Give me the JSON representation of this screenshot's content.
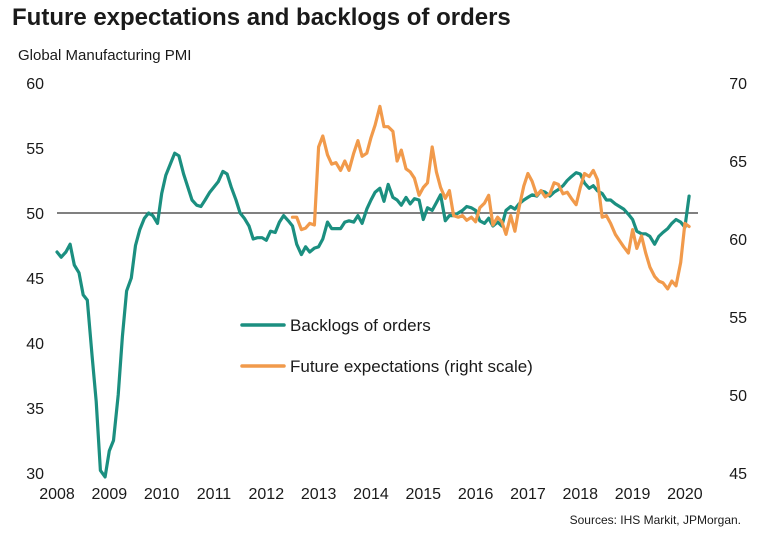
{
  "title": "Future expectations and backlogs of orders",
  "subtitle": "Global Manufacturing  PMI",
  "source": "Sources: IHS Markit, JPMorgan.",
  "chart_data": {
    "type": "line",
    "x_tick_labels": [
      "2008",
      "2009",
      "2010",
      "2011",
      "2012",
      "2013",
      "2014",
      "2015",
      "2016",
      "2017",
      "2018",
      "2019",
      "2020"
    ],
    "xlim": [
      2008,
      2020.25
    ],
    "left_axis": {
      "ylim": [
        30,
        60
      ],
      "ticks": [
        30,
        35,
        40,
        45,
        50,
        55,
        60
      ]
    },
    "right_axis": {
      "ylim": [
        45,
        70
      ],
      "ticks": [
        45,
        50,
        55,
        60,
        65,
        70
      ]
    },
    "reference_line": 50,
    "colors": {
      "backlogs": "#1b8f80",
      "expectations": "#f19a4b"
    },
    "series": [
      {
        "name": "Backlogs of orders",
        "axis": "left",
        "points": [
          [
            2008.0,
            47.0
          ],
          [
            2008.08,
            46.6
          ],
          [
            2008.17,
            47.0
          ],
          [
            2008.25,
            47.6
          ],
          [
            2008.33,
            46.0
          ],
          [
            2008.42,
            45.4
          ],
          [
            2008.5,
            43.7
          ],
          [
            2008.58,
            43.3
          ],
          [
            2008.67,
            39.0
          ],
          [
            2008.75,
            35.5
          ],
          [
            2008.83,
            30.2
          ],
          [
            2008.92,
            29.7
          ],
          [
            2009.0,
            31.7
          ],
          [
            2009.08,
            32.5
          ],
          [
            2009.17,
            36.0
          ],
          [
            2009.25,
            40.5
          ],
          [
            2009.33,
            44.0
          ],
          [
            2009.42,
            45.0
          ],
          [
            2009.5,
            47.5
          ],
          [
            2009.58,
            48.7
          ],
          [
            2009.67,
            49.6
          ],
          [
            2009.75,
            50.0
          ],
          [
            2009.83,
            49.8
          ],
          [
            2009.92,
            49.2
          ],
          [
            2010.0,
            51.5
          ],
          [
            2010.08,
            52.9
          ],
          [
            2010.17,
            53.8
          ],
          [
            2010.25,
            54.6
          ],
          [
            2010.33,
            54.4
          ],
          [
            2010.42,
            53.0
          ],
          [
            2010.5,
            52.0
          ],
          [
            2010.58,
            51.0
          ],
          [
            2010.67,
            50.6
          ],
          [
            2010.75,
            50.5
          ],
          [
            2010.83,
            51.0
          ],
          [
            2010.92,
            51.6
          ],
          [
            2011.0,
            52.0
          ],
          [
            2011.08,
            52.4
          ],
          [
            2011.17,
            53.2
          ],
          [
            2011.25,
            53.0
          ],
          [
            2011.33,
            52.0
          ],
          [
            2011.42,
            51.0
          ],
          [
            2011.5,
            50.0
          ],
          [
            2011.58,
            49.6
          ],
          [
            2011.67,
            49.0
          ],
          [
            2011.75,
            48.0
          ],
          [
            2011.83,
            48.1
          ],
          [
            2011.92,
            48.1
          ],
          [
            2012.0,
            47.9
          ],
          [
            2012.08,
            48.6
          ],
          [
            2012.17,
            48.5
          ],
          [
            2012.25,
            49.3
          ],
          [
            2012.33,
            49.8
          ],
          [
            2012.42,
            49.4
          ],
          [
            2012.5,
            49.0
          ],
          [
            2012.58,
            47.6
          ],
          [
            2012.67,
            46.8
          ],
          [
            2012.75,
            47.4
          ],
          [
            2012.83,
            47.0
          ],
          [
            2012.92,
            47.3
          ],
          [
            2013.0,
            47.4
          ],
          [
            2013.08,
            48.0
          ],
          [
            2013.17,
            49.3
          ],
          [
            2013.25,
            48.8
          ],
          [
            2013.33,
            48.8
          ],
          [
            2013.42,
            48.8
          ],
          [
            2013.5,
            49.3
          ],
          [
            2013.58,
            49.4
          ],
          [
            2013.67,
            49.3
          ],
          [
            2013.75,
            49.8
          ],
          [
            2013.83,
            49.2
          ],
          [
            2013.92,
            50.3
          ],
          [
            2014.0,
            51.0
          ],
          [
            2014.08,
            51.6
          ],
          [
            2014.17,
            51.9
          ],
          [
            2014.25,
            50.9
          ],
          [
            2014.33,
            52.2
          ],
          [
            2014.42,
            51.2
          ],
          [
            2014.5,
            51.0
          ],
          [
            2014.58,
            50.6
          ],
          [
            2014.67,
            51.2
          ],
          [
            2014.75,
            50.7
          ],
          [
            2014.83,
            51.1
          ],
          [
            2014.92,
            51.0
          ],
          [
            2015.0,
            49.5
          ],
          [
            2015.08,
            50.4
          ],
          [
            2015.17,
            50.2
          ],
          [
            2015.25,
            50.8
          ],
          [
            2015.33,
            51.4
          ],
          [
            2015.42,
            49.4
          ],
          [
            2015.5,
            49.8
          ],
          [
            2015.58,
            49.8
          ],
          [
            2015.67,
            50.0
          ],
          [
            2015.75,
            50.2
          ],
          [
            2015.83,
            50.5
          ],
          [
            2015.92,
            50.4
          ],
          [
            2016.0,
            50.2
          ],
          [
            2016.08,
            49.4
          ],
          [
            2016.17,
            49.2
          ],
          [
            2016.25,
            49.6
          ],
          [
            2016.33,
            49.0
          ],
          [
            2016.42,
            49.3
          ],
          [
            2016.5,
            49.0
          ],
          [
            2016.58,
            50.2
          ],
          [
            2016.67,
            50.5
          ],
          [
            2016.75,
            50.3
          ],
          [
            2016.83,
            50.7
          ],
          [
            2016.92,
            51.0
          ],
          [
            2017.0,
            51.2
          ],
          [
            2017.08,
            51.4
          ],
          [
            2017.17,
            51.3
          ],
          [
            2017.25,
            51.7
          ],
          [
            2017.33,
            51.6
          ],
          [
            2017.42,
            51.3
          ],
          [
            2017.5,
            51.6
          ],
          [
            2017.58,
            51.8
          ],
          [
            2017.67,
            52.1
          ],
          [
            2017.75,
            52.5
          ],
          [
            2017.83,
            52.8
          ],
          [
            2017.92,
            53.1
          ],
          [
            2018.0,
            53.0
          ],
          [
            2018.08,
            52.3
          ],
          [
            2018.17,
            51.9
          ],
          [
            2018.25,
            52.1
          ],
          [
            2018.33,
            51.7
          ],
          [
            2018.42,
            51.5
          ],
          [
            2018.5,
            51.0
          ],
          [
            2018.58,
            51.0
          ],
          [
            2018.67,
            50.7
          ],
          [
            2018.75,
            50.5
          ],
          [
            2018.83,
            50.3
          ],
          [
            2018.92,
            49.9
          ],
          [
            2019.0,
            49.5
          ],
          [
            2019.08,
            48.6
          ],
          [
            2019.17,
            48.4
          ],
          [
            2019.25,
            48.4
          ],
          [
            2019.33,
            48.2
          ],
          [
            2019.42,
            47.6
          ],
          [
            2019.5,
            48.2
          ],
          [
            2019.58,
            48.5
          ],
          [
            2019.67,
            48.8
          ],
          [
            2019.75,
            49.2
          ],
          [
            2019.83,
            49.5
          ],
          [
            2019.92,
            49.3
          ],
          [
            2020.0,
            48.9
          ],
          [
            2020.08,
            51.3
          ]
        ]
      },
      {
        "name": "Future expectations (right scale)",
        "axis": "right",
        "points": [
          [
            2012.5,
            61.4
          ],
          [
            2012.58,
            61.4
          ],
          [
            2012.67,
            60.6
          ],
          [
            2012.75,
            60.7
          ],
          [
            2012.83,
            61.0
          ],
          [
            2012.92,
            60.9
          ],
          [
            2013.0,
            65.9
          ],
          [
            2013.08,
            66.6
          ],
          [
            2013.17,
            65.4
          ],
          [
            2013.25,
            64.8
          ],
          [
            2013.33,
            64.9
          ],
          [
            2013.42,
            64.4
          ],
          [
            2013.5,
            65.0
          ],
          [
            2013.58,
            64.4
          ],
          [
            2013.67,
            65.5
          ],
          [
            2013.75,
            66.3
          ],
          [
            2013.83,
            65.3
          ],
          [
            2013.92,
            65.5
          ],
          [
            2014.0,
            66.5
          ],
          [
            2014.08,
            67.3
          ],
          [
            2014.17,
            68.5
          ],
          [
            2014.25,
            67.2
          ],
          [
            2014.33,
            67.2
          ],
          [
            2014.42,
            66.9
          ],
          [
            2014.5,
            65.0
          ],
          [
            2014.58,
            65.7
          ],
          [
            2014.67,
            64.5
          ],
          [
            2014.75,
            64.3
          ],
          [
            2014.83,
            63.9
          ],
          [
            2014.92,
            62.8
          ],
          [
            2015.0,
            63.3
          ],
          [
            2015.08,
            63.6
          ],
          [
            2015.17,
            65.9
          ],
          [
            2015.25,
            64.3
          ],
          [
            2015.33,
            63.3
          ],
          [
            2015.42,
            62.6
          ],
          [
            2015.5,
            63.1
          ],
          [
            2015.58,
            61.5
          ],
          [
            2015.67,
            61.4
          ],
          [
            2015.75,
            61.5
          ],
          [
            2015.83,
            61.2
          ],
          [
            2015.92,
            61.4
          ],
          [
            2016.0,
            61.1
          ],
          [
            2016.08,
            62.0
          ],
          [
            2016.17,
            62.3
          ],
          [
            2016.25,
            62.8
          ],
          [
            2016.33,
            60.9
          ],
          [
            2016.42,
            61.4
          ],
          [
            2016.5,
            61.1
          ],
          [
            2016.58,
            60.3
          ],
          [
            2016.67,
            61.5
          ],
          [
            2016.75,
            60.5
          ],
          [
            2016.83,
            62.0
          ],
          [
            2016.92,
            63.4
          ],
          [
            2017.0,
            64.2
          ],
          [
            2017.08,
            63.7
          ],
          [
            2017.17,
            62.8
          ],
          [
            2017.25,
            63.1
          ],
          [
            2017.33,
            62.7
          ],
          [
            2017.42,
            62.9
          ],
          [
            2017.5,
            63.6
          ],
          [
            2017.58,
            63.5
          ],
          [
            2017.67,
            62.9
          ],
          [
            2017.75,
            63.0
          ],
          [
            2017.83,
            62.6
          ],
          [
            2017.92,
            62.2
          ],
          [
            2018.0,
            63.3
          ],
          [
            2018.08,
            64.2
          ],
          [
            2018.17,
            64.0
          ],
          [
            2018.25,
            64.4
          ],
          [
            2018.33,
            63.8
          ],
          [
            2018.42,
            61.4
          ],
          [
            2018.5,
            61.5
          ],
          [
            2018.58,
            61.0
          ],
          [
            2018.67,
            60.3
          ],
          [
            2018.75,
            59.9
          ],
          [
            2018.83,
            59.5
          ],
          [
            2018.92,
            59.1
          ],
          [
            2019.0,
            60.6
          ],
          [
            2019.08,
            59.4
          ],
          [
            2019.17,
            60.2
          ],
          [
            2019.25,
            59.1
          ],
          [
            2019.33,
            58.2
          ],
          [
            2019.42,
            57.6
          ],
          [
            2019.5,
            57.3
          ],
          [
            2019.58,
            57.2
          ],
          [
            2019.67,
            56.8
          ],
          [
            2019.75,
            57.3
          ],
          [
            2019.83,
            57.0
          ],
          [
            2019.92,
            58.5
          ],
          [
            2020.0,
            61.0
          ],
          [
            2020.08,
            60.8
          ]
        ]
      }
    ]
  }
}
